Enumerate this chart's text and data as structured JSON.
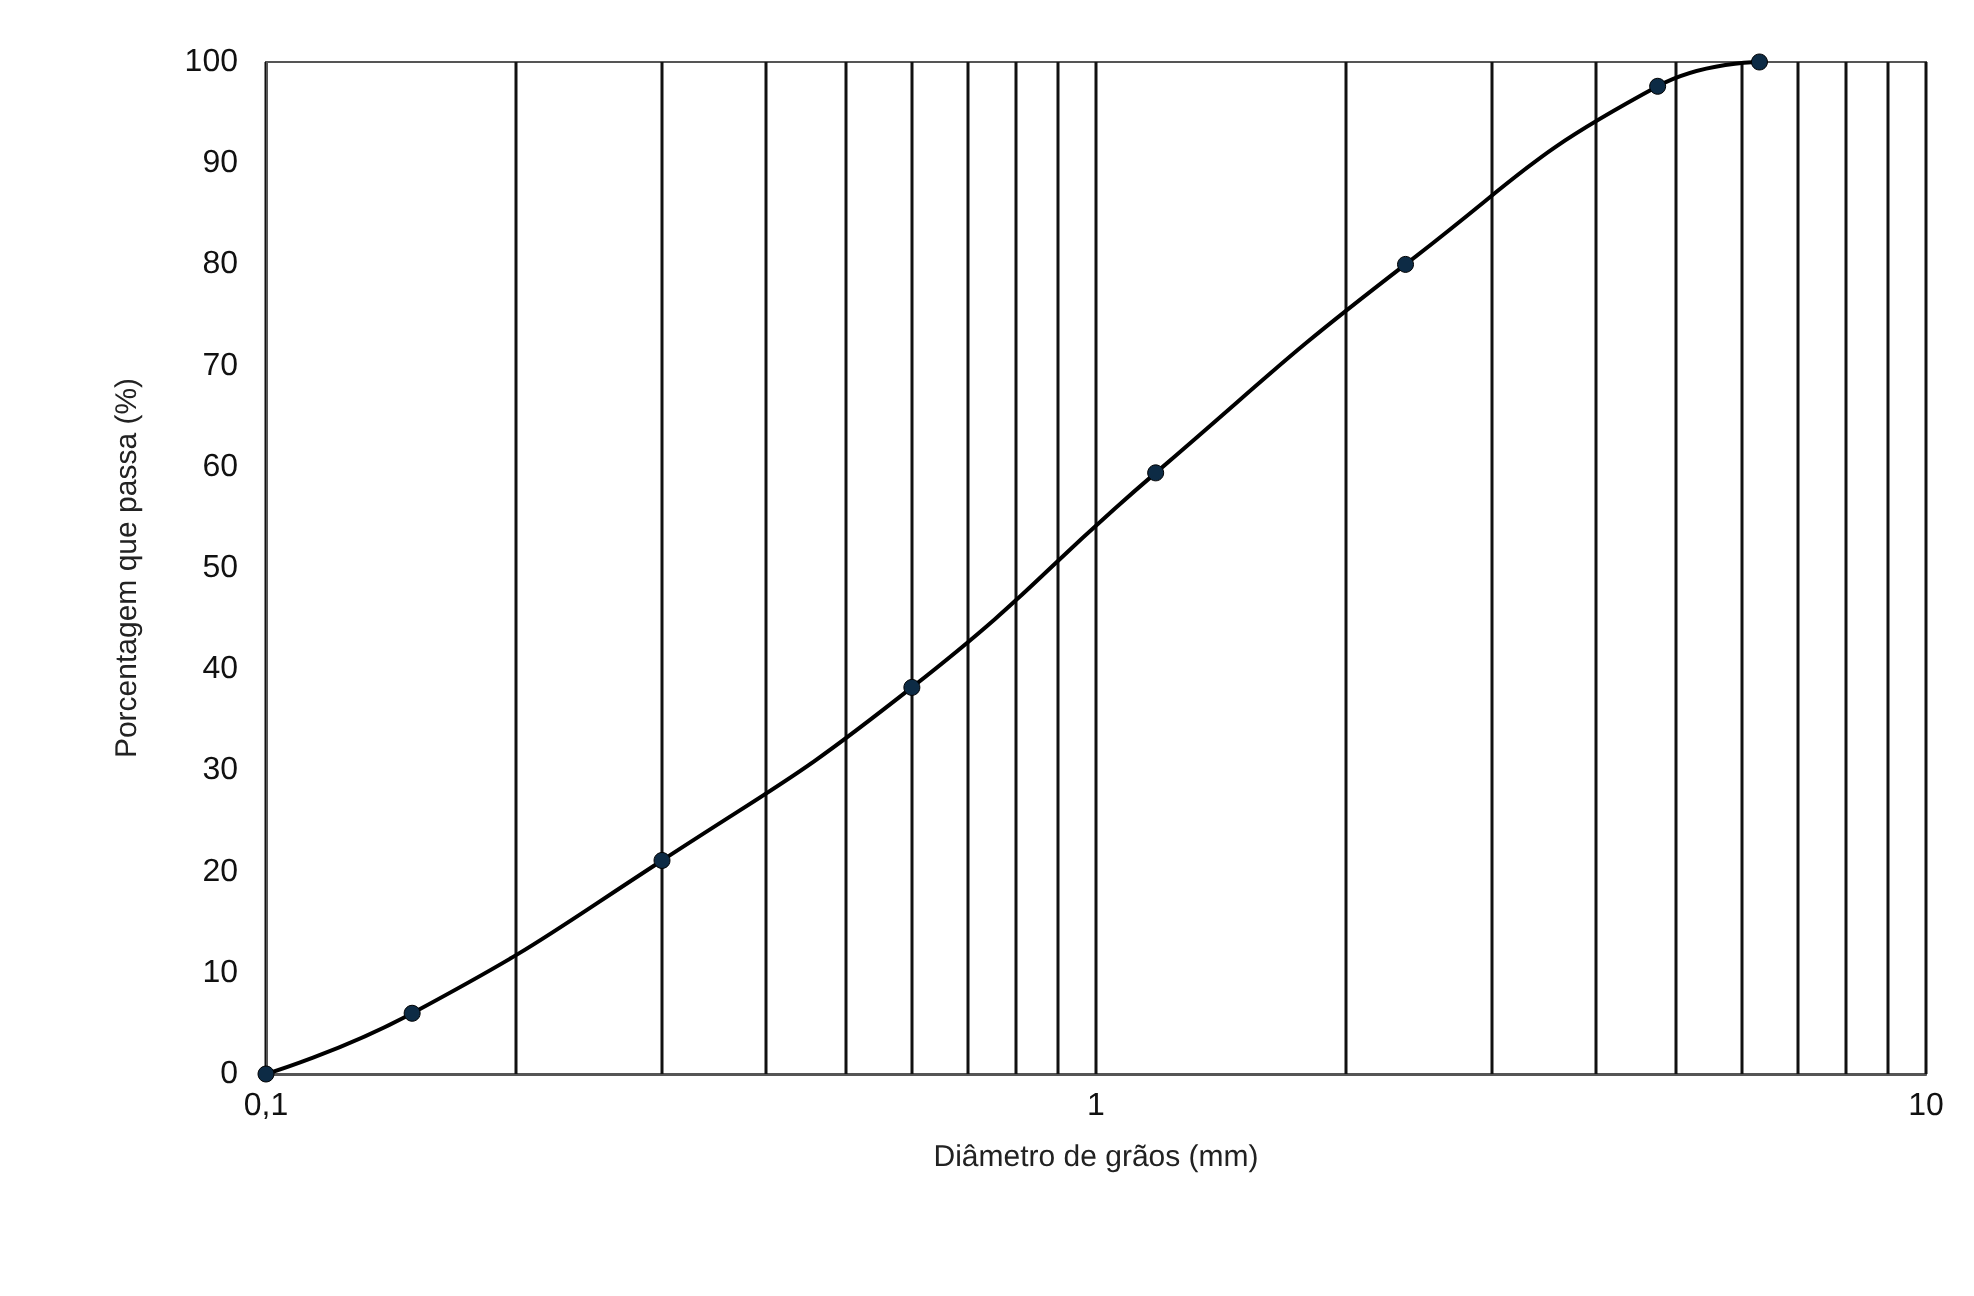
{
  "chart_data": {
    "type": "line",
    "xlabel": "Diâmetro de grãos (mm)",
    "ylabel": "Porcentagem que passa (%)",
    "x": [
      0.1,
      0.15,
      0.3,
      0.6,
      1.18,
      2.36,
      4.75,
      6.3
    ],
    "series": [
      {
        "color": "#0d2b45",
        "values": [
          0,
          6,
          21.1,
          38.2,
          59.4,
          80,
          97.6,
          100
        ]
      }
    ],
    "log": "x",
    "xlim": [
      0.1,
      10
    ],
    "ylim": [
      0,
      100
    ],
    "xticks": [
      {
        "value": 0.1,
        "label": "0,1"
      },
      {
        "value": 0.2,
        "label": null
      },
      {
        "value": 0.3,
        "label": null
      },
      {
        "value": 0.4,
        "label": null
      },
      {
        "value": 0.5,
        "label": null
      },
      {
        "value": 0.6,
        "label": null
      },
      {
        "value": 0.7,
        "label": null
      },
      {
        "value": 0.8,
        "label": null
      },
      {
        "value": 0.9,
        "label": null
      },
      1,
      {
        "value": 2,
        "label": null
      },
      {
        "value": 3,
        "label": null
      },
      {
        "value": 4,
        "label": null
      },
      {
        "value": 5,
        "label": null
      },
      {
        "value": 6,
        "label": null
      },
      {
        "value": 7,
        "label": null
      },
      {
        "value": 8,
        "label": null
      },
      {
        "value": 9,
        "label": null
      },
      10
    ],
    "yticks": [
      0,
      10,
      20,
      30,
      40,
      50,
      60,
      70,
      80,
      90,
      100
    ],
    "grid": "x",
    "marker": "circle",
    "line_style": "solid"
  }
}
